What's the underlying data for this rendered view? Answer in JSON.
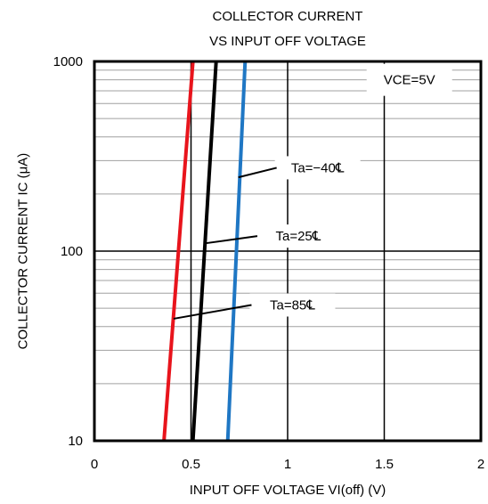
{
  "chart_data": {
    "type": "line",
    "title_lines": [
      "COLLECTOR CURRENT",
      "VS INPUT OFF VOLTAGE"
    ],
    "xlabel": "INPUT OFF VOLTAGE VI(off) (V)",
    "ylabel": "COLLECTOR CURRENT IC (μA)",
    "x_scale": "linear",
    "y_scale": "log",
    "xlim": [
      0,
      2
    ],
    "ylim": [
      10,
      1000
    ],
    "x_ticks": [
      "0",
      "0.5",
      "1",
      "1.5",
      "2"
    ],
    "x_tick_values": [
      0,
      0.5,
      1,
      1.5,
      2
    ],
    "y_ticks": [
      "10",
      "100",
      "1000"
    ],
    "y_tick_values": [
      10,
      100,
      1000
    ],
    "grid": true,
    "condition_label": "VCE=5V",
    "series": [
      {
        "name": "Ta=−40℄",
        "color": "#1f77c4",
        "x": [
          0.69,
          0.78
        ],
        "y": [
          10,
          1000
        ],
        "label_at": [
          0.98,
          275
        ],
        "pointer_to": [
          0.745,
          245
        ]
      },
      {
        "name": "Ta=25℄",
        "color": "#000000",
        "x": [
          0.51,
          0.63
        ],
        "y": [
          10,
          1000
        ],
        "label_at": [
          0.88,
          120
        ],
        "pointer_to": [
          0.575,
          110
        ]
      },
      {
        "name": "Ta=85℄",
        "color": "#e8141c",
        "x": [
          0.36,
          0.51
        ],
        "y": [
          10,
          1000
        ],
        "label_at": [
          0.85,
          52
        ],
        "pointer_to": [
          0.41,
          44
        ]
      }
    ]
  }
}
